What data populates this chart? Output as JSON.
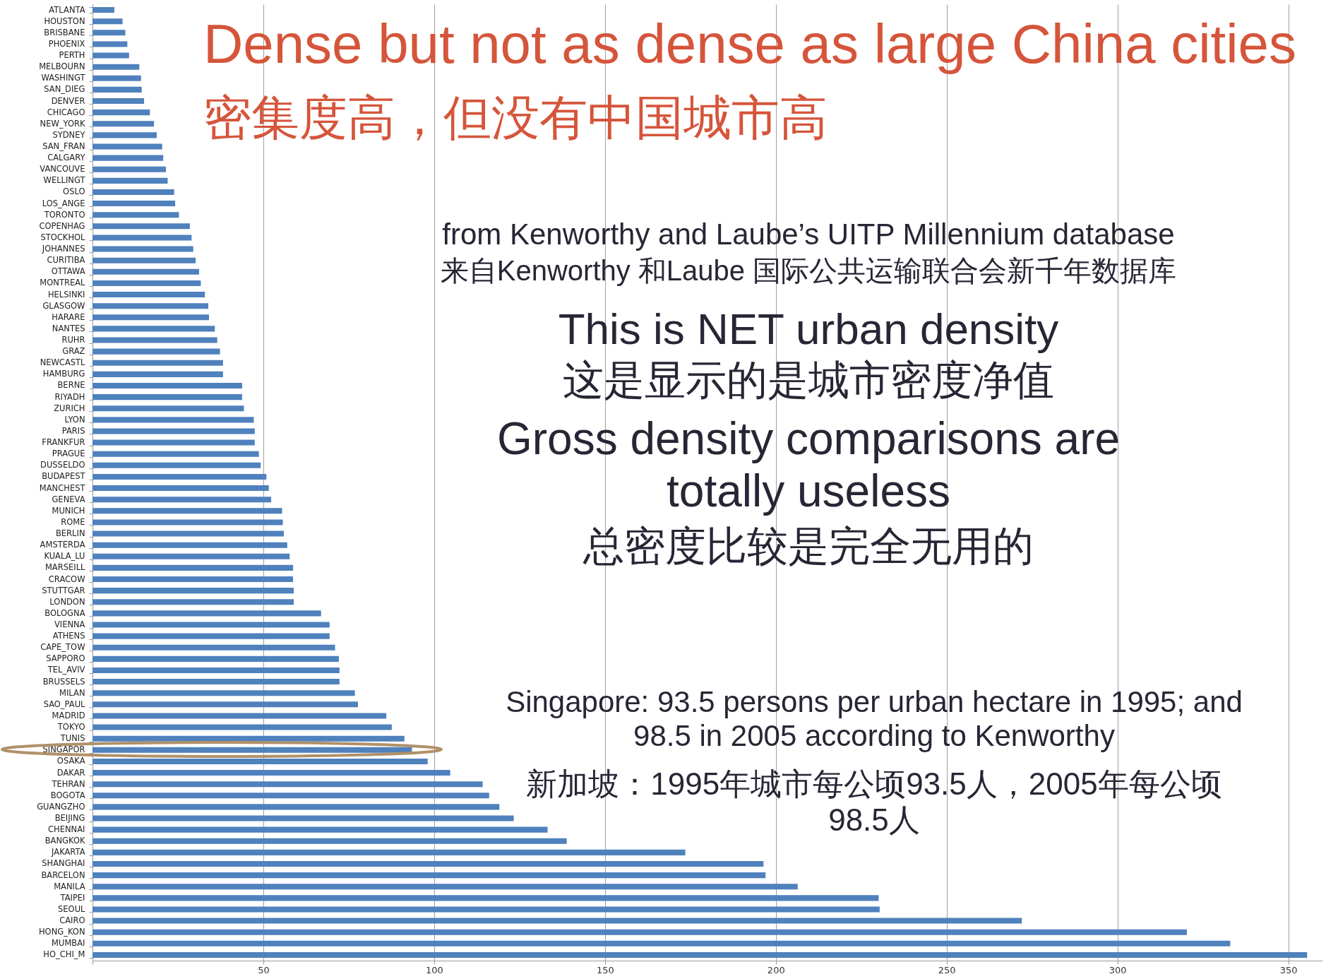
{
  "chart_data": {
    "type": "bar",
    "orientation": "horizontal",
    "title": "Dense but not as dense as large China cities",
    "subtitle": "密集度高，但没有中国城市高",
    "categories": [
      "ATLANTA",
      "HOUSTON",
      "BRISBANE",
      "PHOENIX",
      "PERTH",
      "MELBOURN",
      "WASHINGT",
      "SAN_DIEG",
      "DENVER",
      "CHICAGO",
      "NEW_YORK",
      "SYDNEY",
      "SAN_FRAN",
      "CALGARY",
      "VANCOUVE",
      "WELLINGT",
      "OSLO",
      "LOS_ANGE",
      "TORONTO",
      "COPENHAG",
      "STOCKHOL",
      "JOHANNES",
      "CURITIBA",
      "OTTAWA",
      "MONTREAL",
      "HELSINKI",
      "GLASGOW",
      "HARARE",
      "NANTES",
      "RUHR",
      "GRAZ",
      "NEWCASTL",
      "HAMBURG",
      "BERNE",
      "RIYADH",
      "ZURICH",
      "LYON",
      "PARIS",
      "FRANKFUR",
      "PRAGUE",
      "DUSSELDO",
      "BUDAPEST",
      "MANCHEST",
      "GENEVA",
      "MUNICH",
      "ROME",
      "BERLIN",
      "AMSTERDA",
      "KUALA_LU",
      "MARSEILL",
      "CRACOW",
      "STUTTGAR",
      "LONDON",
      "BOLOGNA",
      "VIENNA",
      "ATHENS",
      "CAPE_TOW",
      "SAPPORO",
      "TEL_AVIV",
      "BRUSSELS",
      "MILAN",
      "SAO_PAUL",
      "MADRID",
      "TOKYO",
      "TUNIS",
      "SINGAPOR",
      "OSAKA",
      "DAKAR",
      "TEHRAN",
      "BOGOTA",
      "GUANGZHO",
      "BEIJING",
      "CHENNAI",
      "BANGKOK",
      "JAKARTA",
      "SHANGHAI",
      "BARCELON",
      "MANILA",
      "TAIPEI",
      "SEOUL",
      "CAIRO",
      "HONG_KON",
      "MUMBAI",
      "HO_CHI_M"
    ],
    "values": [
      6.4,
      8.8,
      9.6,
      10.2,
      10.7,
      13.7,
      14.2,
      14.4,
      15.1,
      16.8,
      18.0,
      18.8,
      20.4,
      20.7,
      21.5,
      22.0,
      23.9,
      24.2,
      25.3,
      28.5,
      29.0,
      29.5,
      30.2,
      31.2,
      31.7,
      32.9,
      33.9,
      34.1,
      35.8,
      36.5,
      37.3,
      38.2,
      38.2,
      43.8,
      43.8,
      44.3,
      47.2,
      47.5,
      47.5,
      48.7,
      49.2,
      50.9,
      51.6,
      52.3,
      55.5,
      55.7,
      56.0,
      57.0,
      57.7,
      58.7,
      58.7,
      58.9,
      58.9,
      66.9,
      69.4,
      69.4,
      71.0,
      72.1,
      72.3,
      72.3,
      76.8,
      77.7,
      86.0,
      87.6,
      91.3,
      93.5,
      98.1,
      104.7,
      114.2,
      116.1,
      119.1,
      123.3,
      133.2,
      138.8,
      173.5,
      196.4,
      197.0,
      206.4,
      230.1,
      230.4,
      272.0,
      320.3,
      333,
      355.5
    ],
    "color": "#4f81bd",
    "xlim": [
      0,
      360
    ],
    "xticks": [
      {
        "value": 0,
        "label": null
      },
      50,
      100,
      150,
      200,
      250,
      300,
      350
    ],
    "grid": "x",
    "annotations": [
      "from Kenworthy and Laube’s UITP Millennium database",
      "来自Kenworthy 和Laube 国际公共运输联合会新千年数据库",
      "This is NET urban density",
      "这是显示的是城市密度净值",
      "Gross density comparisons are totally useless",
      "总密度比较是完全无用的",
      "Singapore: 93.5 persons per urban hectare in 1995; and 98.5 in 2005 according to Kenworthy",
      "新加坡：1995年城市每公顷93.5人，2005年每公顷98.5人"
    ]
  }
}
